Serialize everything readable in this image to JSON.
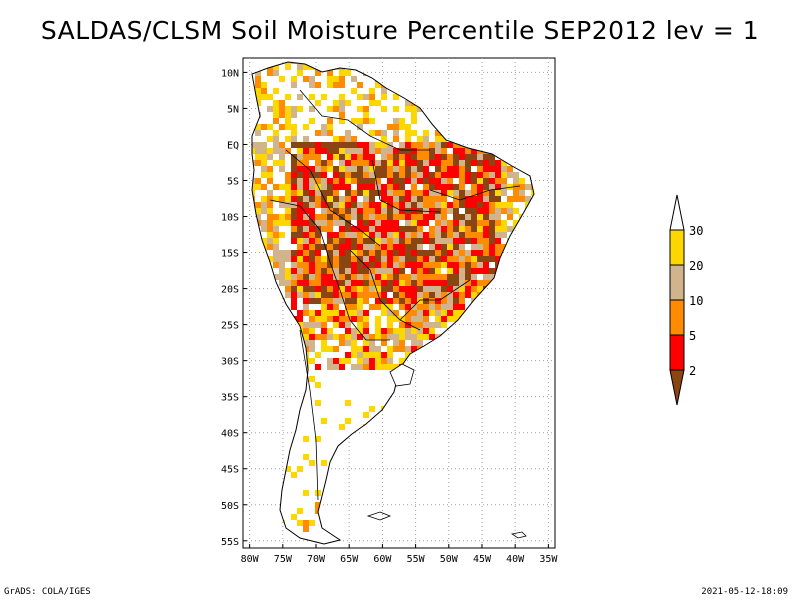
{
  "title": "SALDAS/CLSM Soil Moisture Percentile SEP2012 lev = 1",
  "chart_data": {
    "type": "heatmap",
    "title": "SALDAS/CLSM Soil Moisture Percentile SEP2012 lev = 1",
    "x_ticks": [
      "80W",
      "75W",
      "70W",
      "65W",
      "60W",
      "55W",
      "50W",
      "45W",
      "40W",
      "35W"
    ],
    "y_ticks": [
      "10N",
      "5N",
      "EQ",
      "5S",
      "10S",
      "15S",
      "20S",
      "25S",
      "30S",
      "35S",
      "40S",
      "45S",
      "50S",
      "55S"
    ],
    "xlim": [
      -81,
      -34
    ],
    "ylim": [
      -56,
      12
    ],
    "grid": true,
    "legend": {
      "placement": "right",
      "levels": [
        "2",
        "5",
        "10",
        "20",
        "30"
      ],
      "colors": [
        "#8b4513",
        "#ff0000",
        "#ff8c00",
        "#d2b48c",
        "#ffd700",
        "#ffffff"
      ]
    }
  },
  "footer": {
    "left": "GrADS: COLA/IGES",
    "right": "2021-05-12-18:09"
  }
}
